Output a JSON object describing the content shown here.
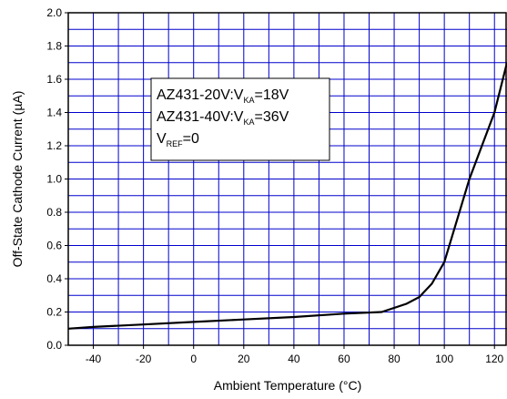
{
  "chart_data": {
    "type": "line",
    "title": "",
    "xlabel": "Ambient Temperature (°C)",
    "ylabel": "Off-State Cathode Current (µA)",
    "xlim": [
      -50,
      125
    ],
    "ylim": [
      0,
      2.0
    ],
    "grid": true,
    "colors": {
      "grid": "#0000cc",
      "line": "#000000"
    },
    "x_ticks": [
      -40,
      -20,
      0,
      20,
      40,
      60,
      80,
      100,
      120
    ],
    "y_ticks": [
      "0.0",
      "0.2",
      "0.4",
      "0.6",
      "0.8",
      "1.0",
      "1.2",
      "1.4",
      "1.6",
      "1.8",
      "2.0"
    ],
    "legend": {
      "placement": "upper-left-center",
      "lines": [
        {
          "main": "AZ431-20V:V",
          "sub": "KA",
          "tail": "=18V"
        },
        {
          "main": "AZ431-40V:V",
          "sub": "KA",
          "tail": "=36V"
        },
        {
          "main": "V",
          "sub": "REF",
          "tail": "=0"
        }
      ]
    },
    "series": [
      {
        "x": [
          -50,
          -40,
          -20,
          0,
          20,
          40,
          60,
          75,
          85,
          90,
          95,
          100,
          110,
          120,
          125
        ],
        "y": [
          0.1,
          0.11,
          0.125,
          0.14,
          0.155,
          0.17,
          0.19,
          0.2,
          0.25,
          0.29,
          0.37,
          0.5,
          1.0,
          1.4,
          1.7
        ]
      }
    ]
  }
}
